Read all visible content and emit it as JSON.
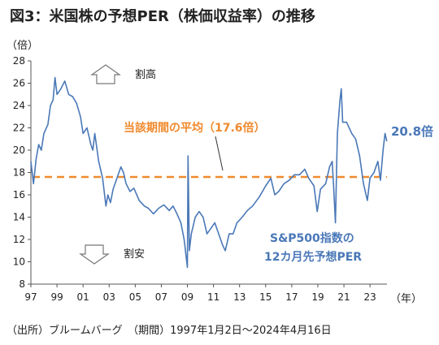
{
  "title": "図3：米国株の予想PER（株価収益率）の推移",
  "source": "（出所）ブルームバーグ　（期間）1997年1月2日～2024年4月16日",
  "chart_data": {
    "type": "line",
    "ylabel": "（倍）",
    "xlabel": "（年）",
    "ylim": [
      8,
      28
    ],
    "yticks": [
      8,
      10,
      12,
      14,
      16,
      18,
      20,
      22,
      24,
      26,
      28
    ],
    "xlim": [
      1997.0,
      2024.3
    ],
    "xticks": [
      1997,
      1999,
      2001,
      2003,
      2005,
      2007,
      2009,
      2011,
      2013,
      2015,
      2017,
      2019,
      2021,
      2023
    ],
    "xtick_labels": [
      "97",
      "99",
      "01",
      "03",
      "05",
      "07",
      "09",
      "11",
      "13",
      "15",
      "17",
      "19",
      "21",
      "23"
    ],
    "grid": false,
    "series": [
      {
        "name": "S&P500指数の12カ月先予想PER",
        "color": "#4a78b8",
        "x": [
          1997.0,
          1997.2,
          1997.4,
          1997.6,
          1997.8,
          1998.0,
          1998.3,
          1998.5,
          1998.7,
          1998.85,
          1999.0,
          1999.3,
          1999.6,
          1999.9,
          2000.2,
          2000.5,
          2000.8,
          2001.0,
          2001.3,
          2001.6,
          2001.75,
          2001.9,
          2002.2,
          2002.5,
          2002.75,
          2002.9,
          2003.1,
          2003.3,
          2003.6,
          2003.9,
          2004.1,
          2004.3,
          2004.6,
          2004.9,
          2005.3,
          2005.7,
          2006.0,
          2006.4,
          2006.8,
          2007.2,
          2007.6,
          2007.9,
          2008.2,
          2008.5,
          2008.75,
          2008.9,
          2009.0,
          2009.05,
          2009.15,
          2009.3,
          2009.6,
          2009.9,
          2010.2,
          2010.5,
          2010.8,
          2011.1,
          2011.4,
          2011.7,
          2011.9,
          2012.2,
          2012.5,
          2012.8,
          2013.2,
          2013.6,
          2014.0,
          2014.5,
          2015.0,
          2015.4,
          2015.7,
          2016.0,
          2016.4,
          2016.8,
          2017.2,
          2017.6,
          2018.0,
          2018.3,
          2018.7,
          2018.95,
          2019.2,
          2019.6,
          2019.9,
          2020.1,
          2020.2,
          2020.35,
          2020.5,
          2020.7,
          2020.8,
          2020.9,
          2021.2,
          2021.6,
          2021.9,
          2022.2,
          2022.5,
          2022.8,
          2023.0,
          2023.3,
          2023.6,
          2023.8,
          2024.0,
          2024.15,
          2024.29
        ],
        "values": [
          19.0,
          17.0,
          19.2,
          20.5,
          20.0,
          21.5,
          22.3,
          24.0,
          24.5,
          26.5,
          25.0,
          25.5,
          26.2,
          25.0,
          24.8,
          24.2,
          23.0,
          21.5,
          22.0,
          20.5,
          20.0,
          21.5,
          19.0,
          17.5,
          15.0,
          16.0,
          15.3,
          16.5,
          17.5,
          18.5,
          18.0,
          17.0,
          16.3,
          16.6,
          15.5,
          15.0,
          14.8,
          14.3,
          14.8,
          15.1,
          14.6,
          15.0,
          14.3,
          13.5,
          12.0,
          10.5,
          9.5,
          19.5,
          11.0,
          12.5,
          14.0,
          14.5,
          14.0,
          12.5,
          13.0,
          13.5,
          12.5,
          11.5,
          11.0,
          12.5,
          12.5,
          13.5,
          14.0,
          14.6,
          15.0,
          15.8,
          16.8,
          17.5,
          16.0,
          16.3,
          17.0,
          17.3,
          17.8,
          17.8,
          18.3,
          17.5,
          16.8,
          14.5,
          16.5,
          17.0,
          18.5,
          19.0,
          17.0,
          13.5,
          21.5,
          24.5,
          25.5,
          22.5,
          22.5,
          21.5,
          21.0,
          19.5,
          17.0,
          15.5,
          17.5,
          18.0,
          19.0,
          17.3,
          20.0,
          21.5,
          20.8
        ]
      }
    ],
    "average": {
      "value": 17.6,
      "label": "当該期間の平均（17.6倍）",
      "color": "#f08a2e"
    },
    "last_value_label": "20.8倍",
    "series_label_lines": [
      "S&P500指数の",
      "12カ月先予想PER"
    ],
    "annotations": {
      "up": "割高",
      "down": "割安"
    }
  }
}
